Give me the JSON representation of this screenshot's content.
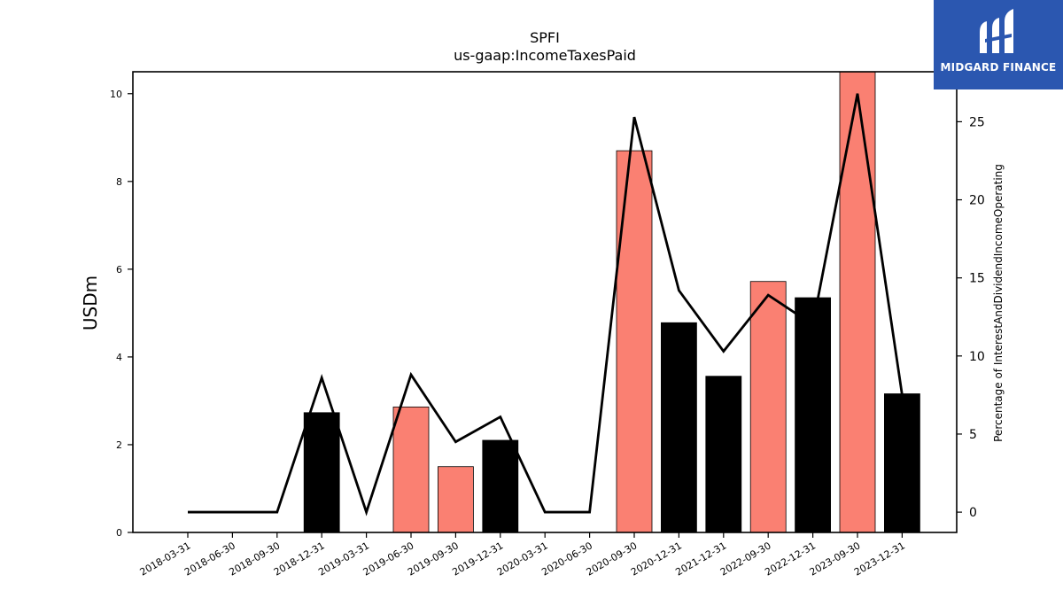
{
  "logo": {
    "text": "MIDGARD FINANCE",
    "bg_color": "#2b57b0"
  },
  "chart_data": {
    "type": "bar",
    "title": "SPFI",
    "subtitle": "us-gaap:IncomeTaxesPaid",
    "ylabel": "USDm",
    "y2label": "Percentage of InterestAndDividendIncomeOperating",
    "ylim": [
      0,
      10.5
    ],
    "y2lim": [
      -1.3,
      28.2
    ],
    "yticks": [
      0,
      2,
      4,
      6,
      8,
      10
    ],
    "y2ticks": [
      0,
      5,
      10,
      15,
      20,
      25
    ],
    "categories": [
      "2018-03-31",
      "2018-06-30",
      "2018-09-30",
      "2018-12-31",
      "2019-03-31",
      "2019-06-30",
      "2019-09-30",
      "2019-12-31",
      "2020-03-31",
      "2020-06-30",
      "2020-09-30",
      "2020-12-31",
      "2021-12-31",
      "2022-09-30",
      "2022-12-31",
      "2023-09-30",
      "2023-12-31"
    ],
    "series": [
      {
        "kind": "bar",
        "axis": "left",
        "values": [
          0,
          0,
          0,
          2.73,
          0,
          2.86,
          1.5,
          2.1,
          0,
          0,
          8.7,
          4.78,
          3.56,
          5.72,
          5.35,
          10.5,
          3.16
        ],
        "colors": [
          "#000000",
          "#000000",
          "#000000",
          "#000000",
          "#000000",
          "#fa8072",
          "#fa8072",
          "#000000",
          "#000000",
          "#000000",
          "#fa8072",
          "#000000",
          "#000000",
          "#fa8072",
          "#000000",
          "#fa8072",
          "#000000"
        ]
      },
      {
        "kind": "line",
        "axis": "right",
        "color": "#000000",
        "values": [
          0,
          0,
          0,
          8.6,
          0,
          8.8,
          4.5,
          6.1,
          0,
          0,
          25.3,
          14.2,
          10.3,
          13.9,
          12.0,
          26.8,
          7.5
        ]
      }
    ],
    "grid": false
  }
}
